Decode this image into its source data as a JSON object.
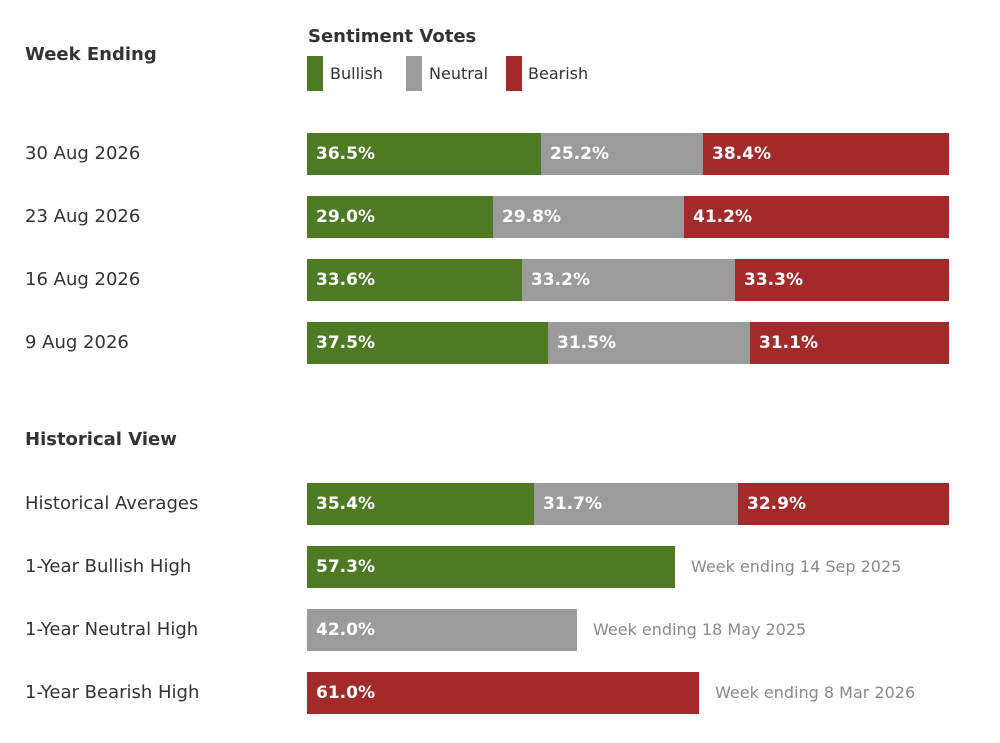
{
  "headers": {
    "week_ending": "Week Ending",
    "sentiment_votes": "Sentiment Votes",
    "historical_view": "Historical View"
  },
  "legend": [
    {
      "name": "Bullish",
      "color": "#4e7a23"
    },
    {
      "name": "Neutral",
      "color": "#9b9b9b"
    },
    {
      "name": "Bearish",
      "color": "#a32a2a"
    }
  ],
  "chart_data": {
    "type": "bar",
    "stacked": true,
    "orientation": "horizontal",
    "weekly": [
      {
        "label": "30 Aug 2026",
        "values": [
          36.5,
          25.2,
          38.4
        ],
        "labels": [
          "36.5%",
          "25.2%",
          "38.4%"
        ]
      },
      {
        "label": "23 Aug 2026",
        "values": [
          29.0,
          29.8,
          41.2
        ],
        "labels": [
          "29.0%",
          "29.8%",
          "41.2%"
        ]
      },
      {
        "label": "16 Aug 2026",
        "values": [
          33.6,
          33.2,
          33.3
        ],
        "labels": [
          "33.6%",
          "33.2%",
          "33.3%"
        ]
      },
      {
        "label": "9 Aug 2026",
        "values": [
          37.5,
          31.5,
          31.1
        ],
        "labels": [
          "37.5%",
          "31.5%",
          "31.1%"
        ]
      }
    ],
    "historical": [
      {
        "label": "Historical Averages",
        "values": [
          35.4,
          31.7,
          32.9
        ],
        "labels": [
          "35.4%",
          "31.7%",
          "32.9%"
        ]
      },
      {
        "label": "1-Year Bullish High",
        "series": 0,
        "value": 57.3,
        "value_label": "57.3%",
        "note": "Week ending 14 Sep 2025"
      },
      {
        "label": "1-Year Neutral High",
        "series": 1,
        "value": 42.0,
        "value_label": "42.0%",
        "note": "Week ending 18 May 2025"
      },
      {
        "label": "1-Year Bearish High",
        "series": 2,
        "value": 61.0,
        "value_label": "61.0%",
        "note": "Week ending 8 Mar 2026"
      }
    ],
    "xlim": [
      0,
      100
    ]
  }
}
